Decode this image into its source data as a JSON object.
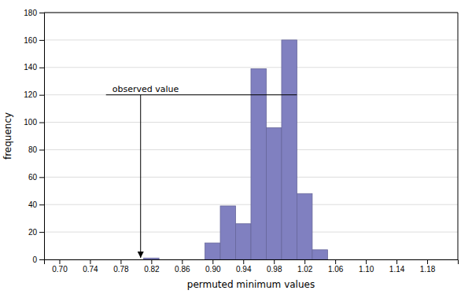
{
  "chart_data": {
    "type": "bar",
    "xlabel": "permuted minimum values",
    "ylabel": "frequency",
    "x": [
      0.82,
      0.9,
      0.92,
      0.94,
      0.96,
      0.98,
      1.0,
      1.02,
      1.04
    ],
    "values": [
      1,
      12,
      39,
      26,
      139,
      96,
      160,
      48,
      7
    ],
    "color": "#8080c0",
    "xlim": [
      0.68,
      1.22
    ],
    "ylim": [
      0,
      180
    ],
    "xticks": [
      {
        "value": 0.7,
        "label": "0.70"
      },
      0.74,
      0.78,
      0.82,
      0.86,
      {
        "value": 0.9,
        "label": "0.90"
      },
      0.94,
      0.98,
      1.02,
      1.06,
      {
        "value": 1.1,
        "label": "1.10"
      },
      1.14,
      1.18
    ],
    "yticks": [
      0,
      20,
      40,
      60,
      80,
      100,
      120,
      140,
      160,
      180
    ],
    "grid": true,
    "annotations": [
      {
        "text": "observed value",
        "x": 0.806,
        "y": 120
      }
    ]
  }
}
